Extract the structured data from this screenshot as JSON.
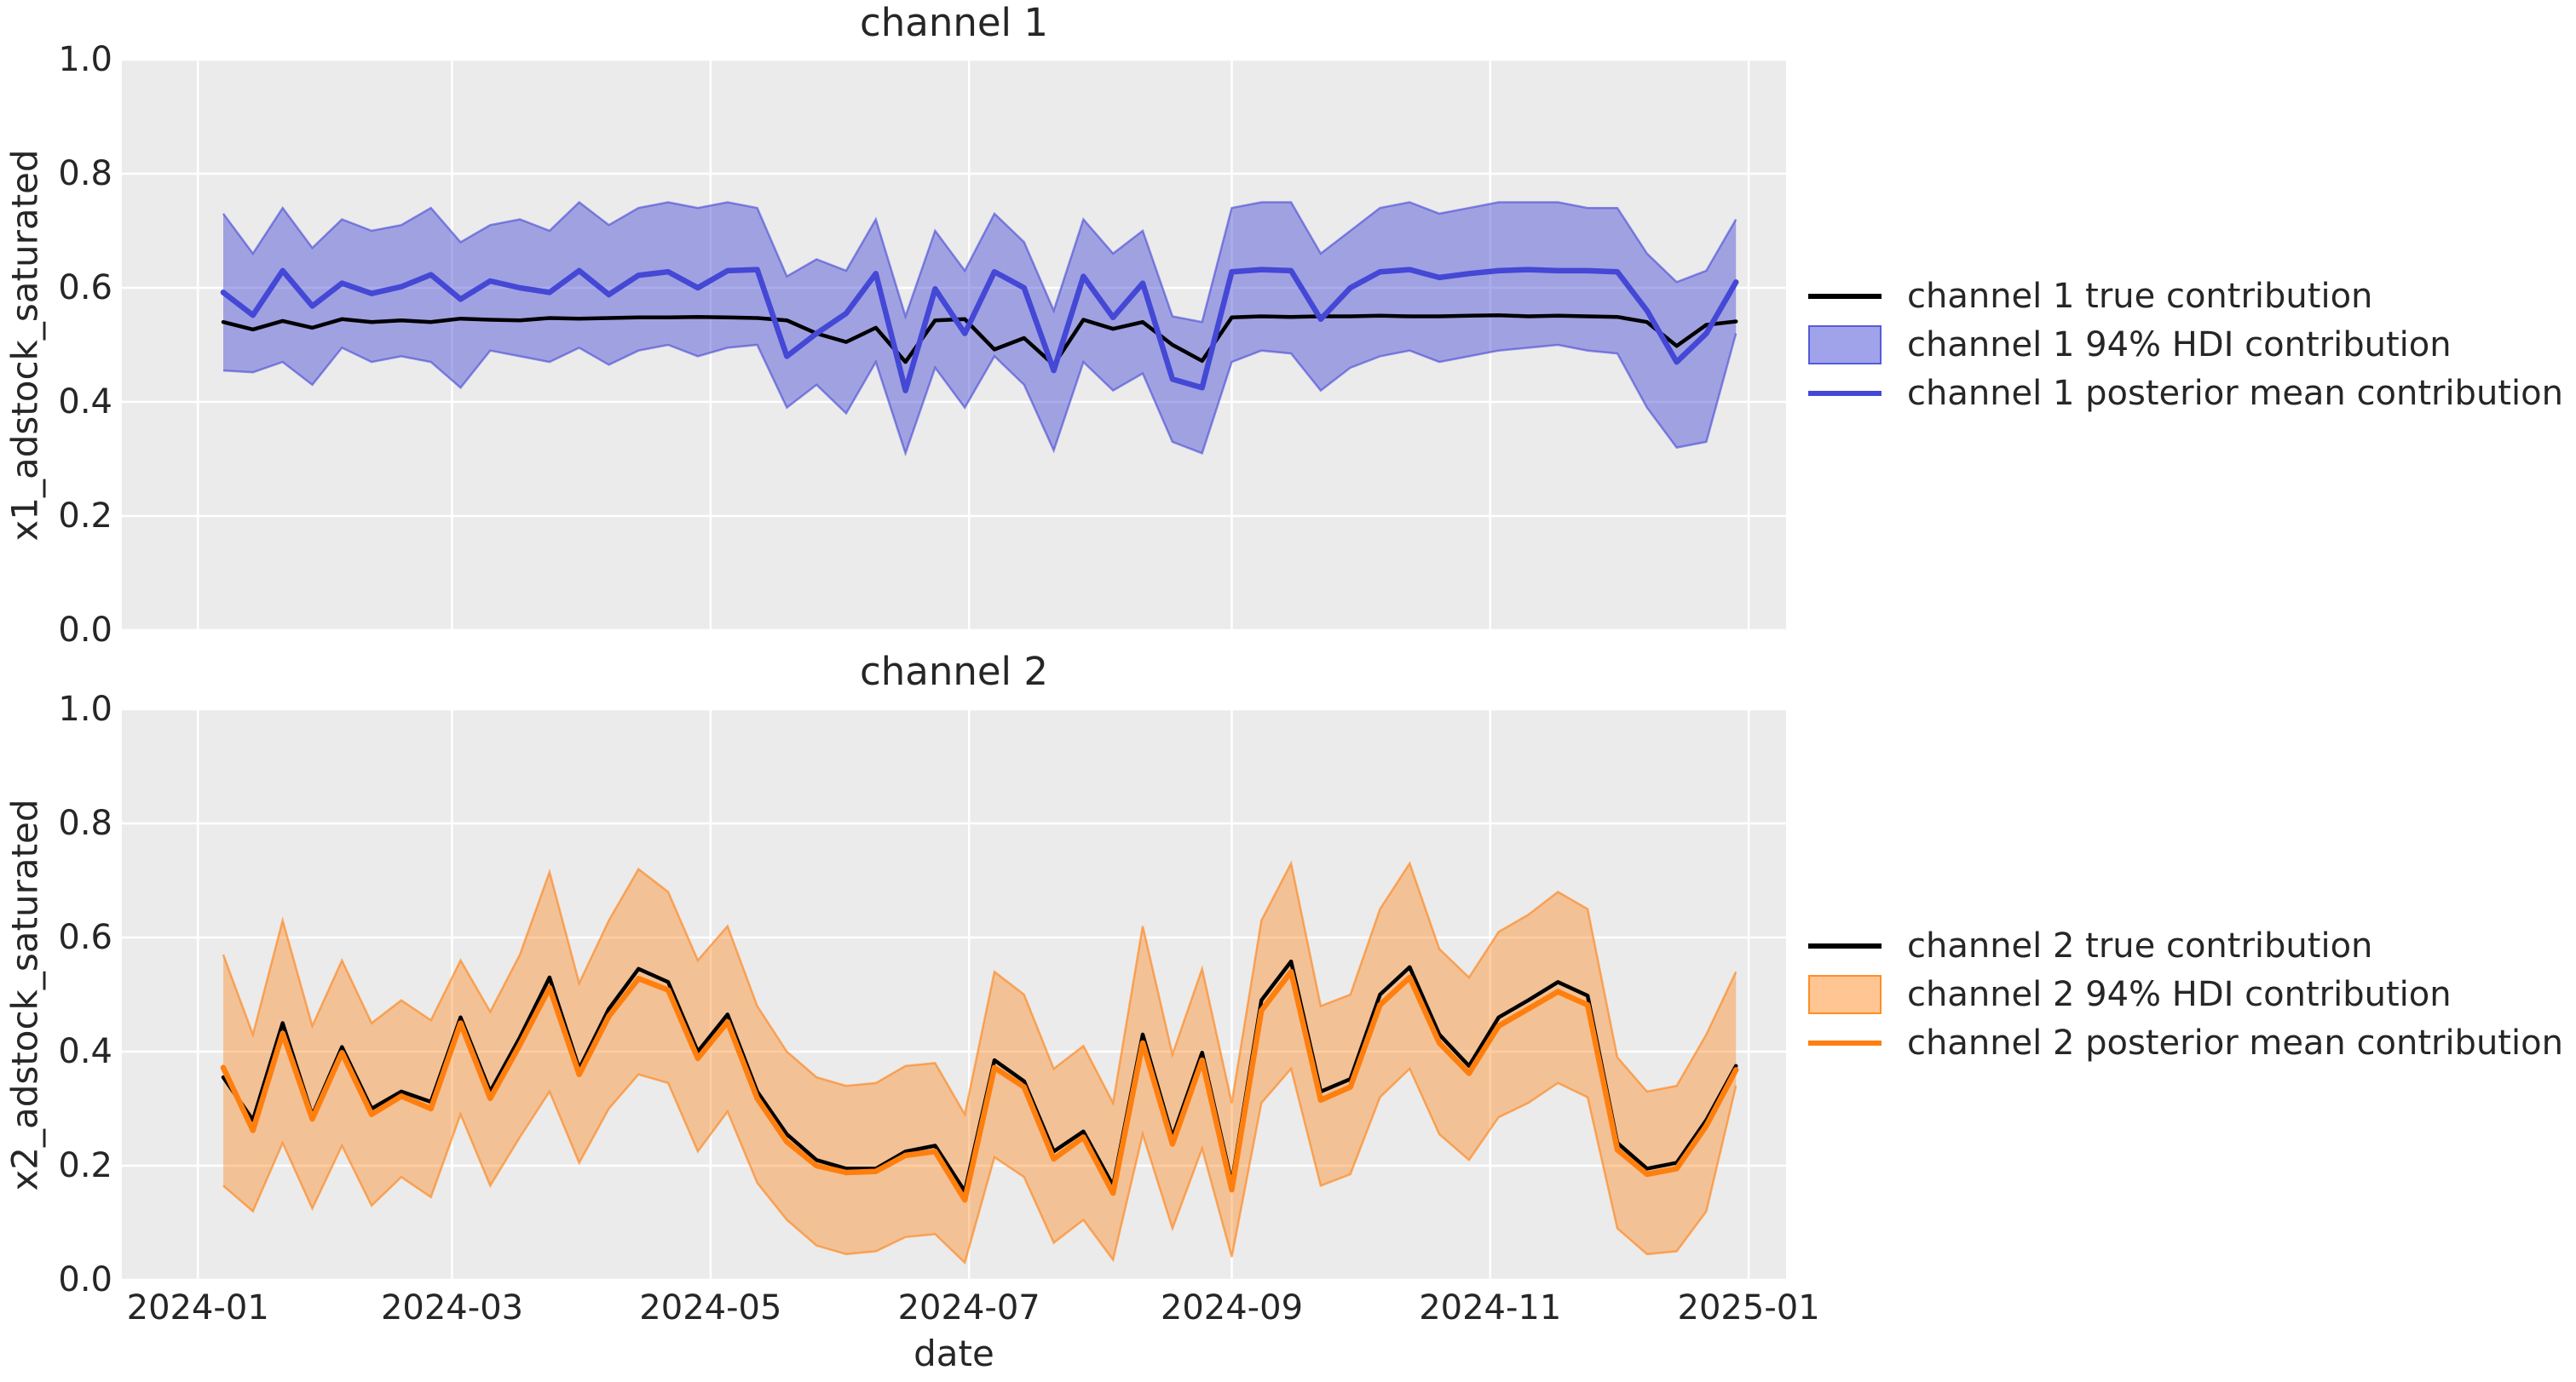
{
  "figure": {
    "background": "#ffffff",
    "axes_background": "#ebebeb",
    "grid_color": "#ffffff",
    "text_color": "#262626"
  },
  "chart_data": [
    {
      "type": "line",
      "title": "channel 1",
      "ylabel": "x1_adstock_saturated",
      "xlabel": "",
      "x_domain_dates": [
        "2024-01-07",
        "2024-12-29"
      ],
      "x_step_days": 7,
      "n_points": 52,
      "ylim": [
        0.0,
        1.0
      ],
      "xlim_weeks": [
        -3.42,
        52.69
      ],
      "grid": true,
      "legend_position": "right",
      "y_tick_labels": [
        "0.0",
        "0.2",
        "0.4",
        "0.6",
        "0.8",
        "1.0"
      ],
      "y_tick_values": [
        0.0,
        0.2,
        0.4,
        0.6,
        0.8,
        1.0
      ],
      "x_tick_labels": [],
      "x_tick_week_positions": [
        -0.857,
        7.714,
        16.429,
        25.143,
        34.0,
        42.714,
        51.429
      ],
      "series": [
        {
          "name": "channel 1 true contribution",
          "color": "#000000",
          "width": 4.5,
          "values": [
            0.54,
            0.527,
            0.542,
            0.53,
            0.545,
            0.54,
            0.543,
            0.54,
            0.546,
            0.544,
            0.543,
            0.547,
            0.546,
            0.547,
            0.548,
            0.548,
            0.549,
            0.548,
            0.547,
            0.543,
            0.52,
            0.505,
            0.53,
            0.47,
            0.543,
            0.545,
            0.492,
            0.512,
            0.465,
            0.544,
            0.528,
            0.54,
            0.5,
            0.472,
            0.548,
            0.55,
            0.549,
            0.55,
            0.55,
            0.551,
            0.55,
            0.55,
            0.551,
            0.552,
            0.55,
            0.551,
            0.55,
            0.549,
            0.54,
            0.498,
            0.535,
            0.541
          ]
        },
        {
          "name": "channel 1 posterior mean contribution",
          "color": "#4448d5",
          "width": 6.5,
          "values": [
            0.592,
            0.552,
            0.63,
            0.568,
            0.608,
            0.59,
            0.602,
            0.623,
            0.58,
            0.612,
            0.6,
            0.592,
            0.63,
            0.588,
            0.622,
            0.628,
            0.6,
            0.63,
            0.632,
            0.48,
            0.52,
            0.555,
            0.625,
            0.42,
            0.598,
            0.52,
            0.628,
            0.6,
            0.455,
            0.62,
            0.548,
            0.608,
            0.44,
            0.425,
            0.628,
            0.632,
            0.63,
            0.545,
            0.6,
            0.628,
            0.632,
            0.618,
            0.625,
            0.63,
            0.632,
            0.63,
            0.63,
            0.628,
            0.56,
            0.47,
            0.52,
            0.61
          ]
        }
      ],
      "band": {
        "name": "channel 1 94% HDI contribution",
        "fill": "rgba(68,72,213,0.45)",
        "edge": "rgba(68,72,213,0.6)",
        "hi": [
          0.73,
          0.66,
          0.74,
          0.67,
          0.72,
          0.7,
          0.71,
          0.74,
          0.68,
          0.71,
          0.72,
          0.7,
          0.75,
          0.71,
          0.74,
          0.75,
          0.74,
          0.75,
          0.74,
          0.62,
          0.65,
          0.63,
          0.72,
          0.55,
          0.7,
          0.63,
          0.73,
          0.68,
          0.56,
          0.72,
          0.66,
          0.7,
          0.55,
          0.54,
          0.74,
          0.75,
          0.75,
          0.66,
          0.7,
          0.74,
          0.75,
          0.73,
          0.74,
          0.75,
          0.75,
          0.75,
          0.74,
          0.74,
          0.66,
          0.61,
          0.63,
          0.72
        ],
        "lo": [
          0.455,
          0.452,
          0.47,
          0.43,
          0.495,
          0.47,
          0.48,
          0.47,
          0.425,
          0.49,
          0.48,
          0.47,
          0.495,
          0.465,
          0.49,
          0.5,
          0.48,
          0.495,
          0.5,
          0.39,
          0.43,
          0.38,
          0.47,
          0.31,
          0.46,
          0.39,
          0.48,
          0.43,
          0.315,
          0.47,
          0.42,
          0.45,
          0.33,
          0.31,
          0.47,
          0.49,
          0.485,
          0.42,
          0.46,
          0.48,
          0.49,
          0.47,
          0.48,
          0.49,
          0.495,
          0.5,
          0.49,
          0.485,
          0.39,
          0.32,
          0.33,
          0.52
        ]
      },
      "legend": [
        {
          "label": "channel 1 true contribution",
          "swatch": "line",
          "color": "#000000"
        },
        {
          "label": "channel 1 94% HDI contribution",
          "swatch": "patch",
          "fill": "rgba(68,72,213,0.5)",
          "edge": "rgba(68,72,213,0.8)"
        },
        {
          "label": "channel 1 posterior mean contribution",
          "swatch": "line",
          "color": "#4448d5"
        }
      ]
    },
    {
      "type": "line",
      "title": "channel 2",
      "ylabel": "x2_adstock_saturated",
      "xlabel": "date",
      "x_domain_dates": [
        "2024-01-07",
        "2024-12-29"
      ],
      "x_step_days": 7,
      "n_points": 52,
      "ylim": [
        0.0,
        1.0
      ],
      "xlim_weeks": [
        -3.42,
        52.69
      ],
      "grid": true,
      "legend_position": "right",
      "y_tick_labels": [
        "0.0",
        "0.2",
        "0.4",
        "0.6",
        "0.8",
        "1.0"
      ],
      "y_tick_values": [
        0.0,
        0.2,
        0.4,
        0.6,
        0.8,
        1.0
      ],
      "x_tick_labels": [
        "2024-01",
        "2024-03",
        "2024-05",
        "2024-07",
        "2024-09",
        "2024-11",
        "2025-01"
      ],
      "x_tick_week_positions": [
        -0.857,
        7.714,
        16.429,
        25.143,
        34.0,
        42.714,
        51.429
      ],
      "series": [
        {
          "name": "channel 2 true contribution",
          "color": "#000000",
          "width": 4.5,
          "values": [
            0.355,
            0.28,
            0.45,
            0.288,
            0.408,
            0.3,
            0.33,
            0.312,
            0.46,
            0.33,
            0.425,
            0.53,
            0.37,
            0.475,
            0.545,
            0.522,
            0.4,
            0.465,
            0.33,
            0.255,
            0.21,
            0.195,
            0.195,
            0.225,
            0.235,
            0.155,
            0.385,
            0.348,
            0.225,
            0.26,
            0.165,
            0.43,
            0.25,
            0.398,
            0.17,
            0.49,
            0.558,
            0.33,
            0.352,
            0.5,
            0.548,
            0.43,
            0.375,
            0.46,
            0.49,
            0.522,
            0.498,
            0.24,
            0.195,
            0.205,
            0.28,
            0.375
          ]
        },
        {
          "name": "channel 2 posterior mean contribution",
          "color": "#ff7f0e",
          "width": 6.5,
          "values": [
            0.372,
            0.262,
            0.432,
            0.282,
            0.398,
            0.29,
            0.322,
            0.3,
            0.45,
            0.318,
            0.412,
            0.512,
            0.36,
            0.462,
            0.528,
            0.508,
            0.388,
            0.452,
            0.318,
            0.242,
            0.2,
            0.188,
            0.19,
            0.218,
            0.225,
            0.14,
            0.372,
            0.338,
            0.212,
            0.25,
            0.152,
            0.415,
            0.238,
            0.385,
            0.158,
            0.472,
            0.54,
            0.315,
            0.338,
            0.482,
            0.53,
            0.415,
            0.362,
            0.445,
            0.475,
            0.505,
            0.482,
            0.228,
            0.185,
            0.195,
            0.27,
            0.368
          ]
        }
      ],
      "band": {
        "name": "channel 2 94% HDI contribution",
        "fill": "rgba(255,127,14,0.38)",
        "edge": "rgba(255,127,14,0.6)",
        "hi": [
          0.57,
          0.43,
          0.63,
          0.445,
          0.56,
          0.45,
          0.49,
          0.455,
          0.56,
          0.47,
          0.57,
          0.715,
          0.52,
          0.63,
          0.72,
          0.68,
          0.56,
          0.62,
          0.48,
          0.4,
          0.355,
          0.34,
          0.345,
          0.375,
          0.38,
          0.29,
          0.54,
          0.5,
          0.37,
          0.41,
          0.31,
          0.62,
          0.395,
          0.545,
          0.31,
          0.63,
          0.73,
          0.48,
          0.5,
          0.65,
          0.73,
          0.58,
          0.53,
          0.61,
          0.64,
          0.68,
          0.65,
          0.39,
          0.33,
          0.34,
          0.43,
          0.54
        ],
        "lo": [
          0.165,
          0.12,
          0.24,
          0.125,
          0.235,
          0.13,
          0.18,
          0.145,
          0.29,
          0.165,
          0.25,
          0.33,
          0.205,
          0.3,
          0.36,
          0.345,
          0.225,
          0.295,
          0.17,
          0.105,
          0.06,
          0.045,
          0.05,
          0.075,
          0.08,
          0.03,
          0.215,
          0.18,
          0.065,
          0.105,
          0.035,
          0.255,
          0.09,
          0.23,
          0.04,
          0.31,
          0.37,
          0.165,
          0.185,
          0.32,
          0.37,
          0.255,
          0.21,
          0.285,
          0.31,
          0.345,
          0.32,
          0.09,
          0.045,
          0.05,
          0.12,
          0.34
        ]
      },
      "legend": [
        {
          "label": "channel 2 true contribution",
          "swatch": "line",
          "color": "#000000"
        },
        {
          "label": "channel 2 94% HDI contribution",
          "swatch": "patch",
          "fill": "rgba(255,127,14,0.45)",
          "edge": "rgba(255,127,14,0.8)"
        },
        {
          "label": "channel 2 posterior mean contribution",
          "swatch": "line",
          "color": "#ff7f0e"
        }
      ]
    }
  ]
}
